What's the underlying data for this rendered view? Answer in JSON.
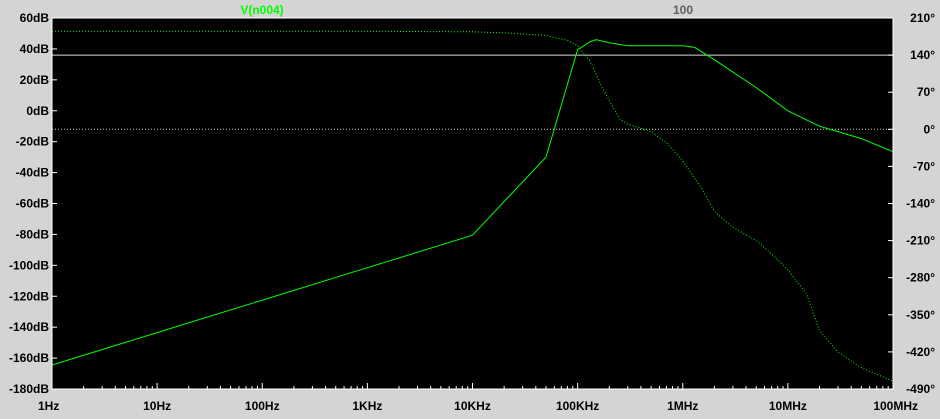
{
  "colors": {
    "background": "#000000",
    "frame": "#ffffff",
    "grid": "#ffffff",
    "trace": "#00ff00",
    "axis_text": "#000000",
    "cursor_label": "#606060",
    "panel": "#d4d4d4"
  },
  "chart_data": {
    "type": "line",
    "title": "V(n004)",
    "cursor_label": "100",
    "x_scale": "log",
    "xlim": [
      1,
      100000000
    ],
    "x_ticks": [
      "1Hz",
      "10Hz",
      "100Hz",
      "1KHz",
      "10KHz",
      "100KHz",
      "1MHz",
      "10MHz",
      "100MHz"
    ],
    "ylim_left": [
      -180,
      60
    ],
    "left_ticks": [
      "60dB",
      "40dB",
      "20dB",
      "0dB",
      "-20dB",
      "-40dB",
      "-60dB",
      "-80dB",
      "-100dB",
      "-120dB",
      "-140dB",
      "-160dB",
      "-180dB"
    ],
    "ylim_right": [
      -490,
      210
    ],
    "right_ticks": [
      "210°",
      "140°",
      "70°",
      "0°",
      "-70°",
      "-140°",
      "-210°",
      "-280°",
      "-350°",
      "-420°",
      "-490°"
    ],
    "grid": "hidden",
    "series": [
      {
        "name": "V(n004)",
        "kind": "magnitude",
        "axis": "left",
        "style": "solid",
        "x": [
          1,
          10,
          100,
          1000,
          10000,
          50000,
          100000,
          130000,
          150000,
          200000,
          300000,
          500000,
          1000000,
          1300000,
          2000000,
          5000000,
          10000000,
          20000000,
          50000000,
          100000000
        ],
        "y": [
          -164.5,
          -143.5,
          -122.5,
          -101.5,
          -80.5,
          -30,
          39.5,
          44.5,
          46,
          44,
          42,
          42,
          42,
          41,
          33,
          15,
          0,
          -10,
          -18,
          -26.5
        ]
      },
      {
        "name": "V(n004) phase",
        "kind": "phase",
        "axis": "right",
        "style": "dotted",
        "x": [
          1,
          10,
          100,
          1000,
          10000,
          20000,
          50000,
          80000,
          100000,
          130000,
          170000,
          250000,
          300000,
          500000,
          700000,
          1000000,
          1500000,
          2000000,
          3000000,
          5000000,
          7000000,
          10000000,
          15000000,
          20000000,
          30000000,
          50000000,
          100000000
        ],
        "y": [
          185,
          185,
          185,
          185,
          184,
          182,
          177,
          168,
          158,
          130,
          80,
          20,
          10,
          -5,
          -25,
          -60,
          -110,
          -155,
          -185,
          -210,
          -235,
          -265,
          -310,
          -380,
          -420,
          -450,
          -475
        ]
      }
    ]
  }
}
